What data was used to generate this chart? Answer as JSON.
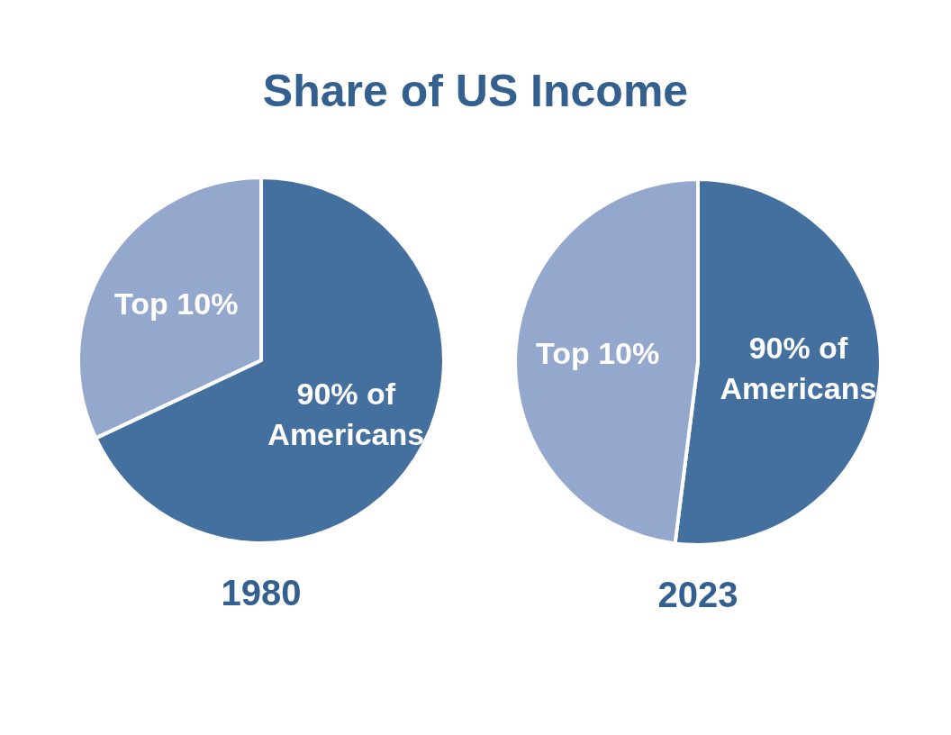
{
  "chart_data": [
    {
      "type": "pie",
      "title": "Share of US Income",
      "xlabel": "1980",
      "categories": [
        "90% of Americans",
        "Top 10%"
      ],
      "values": [
        68,
        32
      ],
      "colors": [
        "#4470a0",
        "#93a8cc"
      ]
    },
    {
      "type": "pie",
      "xlabel": "2023",
      "categories": [
        "90% of Americans",
        "Top 10%"
      ],
      "values": [
        52,
        48
      ],
      "colors": [
        "#4470a0",
        "#93a8cc"
      ]
    }
  ]
}
